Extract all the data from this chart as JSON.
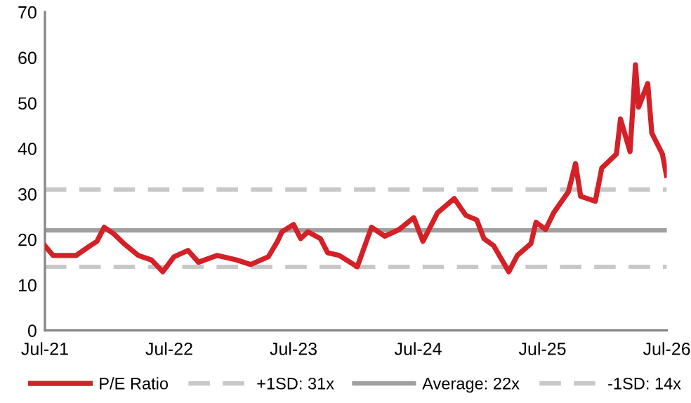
{
  "chart_data": {
    "type": "line",
    "x": [
      "2021-07-01",
      "2021-07-25",
      "2021-10-01",
      "2021-11-10",
      "2021-12-01",
      "2021-12-22",
      "2022-01-20",
      "2022-02-18",
      "2022-04-01",
      "2022-05-10",
      "2022-06-12",
      "2022-07-15",
      "2022-08-25",
      "2022-09-25",
      "2022-11-18",
      "2023-01-15",
      "2023-02-25",
      "2023-04-18",
      "2023-05-15",
      "2023-05-28",
      "2023-07-01",
      "2023-07-22",
      "2023-08-12",
      "2023-09-18",
      "2023-10-09",
      "2023-11-12",
      "2024-01-04",
      "2024-02-15",
      "2024-03-25",
      "2024-05-06",
      "2024-06-18",
      "2024-07-15",
      "2024-08-27",
      "2024-10-15",
      "2024-11-18",
      "2024-12-20",
      "2025-01-10",
      "2025-02-08",
      "2025-03-24",
      "2025-04-18",
      "2025-05-28",
      "2025-06-12",
      "2025-07-10",
      "2025-08-03",
      "2025-09-15",
      "2025-10-06",
      "2025-10-21",
      "2025-12-03",
      "2025-12-22",
      "2026-02-03",
      "2026-02-15",
      "2026-03-15",
      "2026-03-31",
      "2026-04-09",
      "2026-05-06",
      "2026-05-18",
      "2026-06-18",
      "2026-06-30"
    ],
    "series": [
      {
        "name": "P/E Ratio",
        "color": "#d42027",
        "values": [
          18.6,
          16.5,
          16.5,
          18.6,
          19.6,
          22.7,
          21.2,
          19.1,
          16.5,
          15.5,
          12.9,
          16.2,
          17.6,
          15.0,
          16.5,
          15.5,
          14.5,
          16.2,
          19.6,
          21.7,
          23.3,
          20.2,
          21.7,
          20.2,
          17.1,
          16.5,
          14.0,
          22.7,
          20.7,
          22.2,
          24.8,
          19.6,
          25.9,
          29.0,
          25.3,
          24.3,
          20.2,
          18.6,
          12.9,
          16.5,
          19.1,
          23.8,
          22.2,
          25.9,
          30.5,
          36.7,
          29.5,
          28.4,
          35.7,
          38.8,
          46.5,
          39.3,
          58.4,
          49.1,
          54.3,
          43.4,
          38.8,
          34.1
        ]
      }
    ],
    "xlim": [
      "2021-07-01",
      "2026-07-01"
    ],
    "xticks": [
      {
        "value": "2021-07-01",
        "label": "Jul-21"
      },
      {
        "value": "2022-07-01",
        "label": "Jul-22"
      },
      {
        "value": "2023-07-01",
        "label": "Jul-23"
      },
      {
        "value": "2024-07-01",
        "label": "Jul-24"
      },
      {
        "value": "2025-07-01",
        "label": "Jul-25"
      },
      {
        "value": "2026-07-01",
        "label": "Jul-26"
      }
    ],
    "ylim": [
      0,
      70
    ],
    "yticks": [
      0,
      10,
      20,
      30,
      40,
      50,
      60,
      70
    ],
    "ref_lines": [
      {
        "axis": "y",
        "value": 31,
        "label": "+1SD: 31x",
        "color": "#c8c8c8",
        "line_style": "dashed"
      },
      {
        "axis": "y",
        "value": 22,
        "label": "Average: 22x",
        "color": "#a0a0a0",
        "line_style": "solid"
      },
      {
        "axis": "y",
        "value": 14,
        "label": "-1SD: 14x",
        "color": "#c8c8c8",
        "line_style": "dashed"
      }
    ],
    "grid": false,
    "legend": "bottom"
  }
}
